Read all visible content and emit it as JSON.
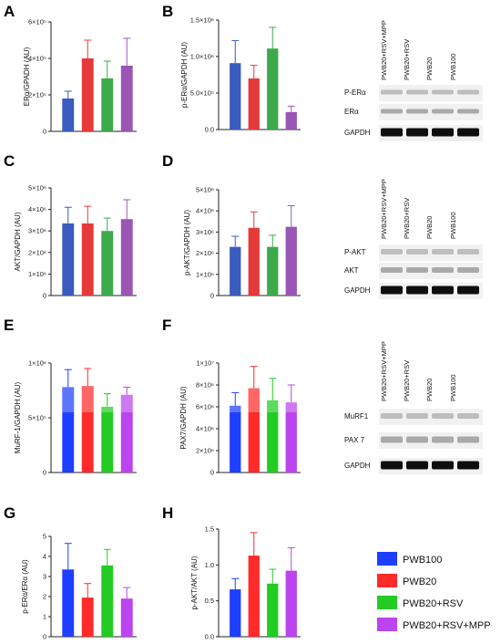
{
  "colors": {
    "pwb100": "#1f3fff",
    "pwb20": "#ff2a2a",
    "pwb20_rsv": "#22cc22",
    "pwb20_rsv_mpp": "#bb44ee",
    "pwb100_dim": "#3a5bbf",
    "pwb20_dim": "#e63a3a",
    "pwb20_rsv_dim": "#3caa4a",
    "pwb20_rsv_mpp_dim": "#9a55b5",
    "error_bar": "#888888",
    "axis": "#222222"
  },
  "legend": {
    "items": [
      "PWB100",
      "PWB20",
      "PWB20+RSV",
      "PWB20+RSV+MPP"
    ]
  },
  "blots": [
    {
      "lanes": [
        "PWB20+RSV+MPP",
        "PWB20+RSV",
        "PWB20",
        "PWB100"
      ],
      "rows": [
        "P-ERα",
        "ERα",
        "GAPDH"
      ]
    },
    {
      "lanes": [
        "PWB20+RSV+MPP",
        "PWB20+RSV",
        "PWB20",
        "PWB100"
      ],
      "rows": [
        "P-AKT",
        "AKT",
        "GAPDH"
      ]
    },
    {
      "lanes": [
        "PWB20+RSV+MPP",
        "PWB20+RSV",
        "PWB20",
        "PWB100"
      ],
      "rows": [
        "MuRF1",
        "PAX 7",
        "GAPDH"
      ]
    }
  ],
  "chart_data": [
    {
      "panel": "A",
      "type": "bar",
      "ylabel": "ERα/GPADH (AU)",
      "ylim": [
        0,
        600000
      ],
      "yticks": [
        0,
        200000,
        400000,
        600000
      ],
      "yticklabels": [
        "0",
        "2×10⁵",
        "4×10⁵",
        "6×10⁵"
      ],
      "series": [
        {
          "values": [
            180000,
            400000,
            290000,
            360000
          ],
          "errors": [
            40000,
            100000,
            95000,
            150000
          ]
        }
      ]
    },
    {
      "panel": "B",
      "type": "bar",
      "ylabel": "p-ERα/GAPDH (AU)",
      "ylim": [
        0,
        1500000
      ],
      "yticks": [
        0,
        500000,
        1000000,
        1500000
      ],
      "yticklabels": [
        "0.0",
        "5.0×10⁵",
        "1.0×10⁶",
        "1.5×10⁶"
      ],
      "series": [
        {
          "values": [
            910000,
            700000,
            1110000,
            240000
          ],
          "errors": [
            310000,
            180000,
            290000,
            80000
          ]
        }
      ]
    },
    {
      "panel": "C",
      "type": "bar",
      "ylabel": "AKT/GAPDH (AU)",
      "ylim": [
        0,
        5000000
      ],
      "yticks": [
        0,
        1000000,
        2000000,
        3000000,
        4000000,
        5000000
      ],
      "yticklabels": [
        "0",
        "1×10⁶",
        "2×10⁶",
        "3×10⁶",
        "4×10⁶",
        "5×10⁶"
      ],
      "series": [
        {
          "values": [
            3350000,
            3350000,
            3000000,
            3550000
          ],
          "errors": [
            750000,
            800000,
            600000,
            900000
          ]
        }
      ]
    },
    {
      "panel": "D",
      "type": "bar",
      "ylabel": "p-AKT/GAPDH (AU)",
      "ylim": [
        0,
        5000000
      ],
      "yticks": [
        0,
        1000000,
        2000000,
        3000000,
        4000000,
        5000000
      ],
      "yticklabels": [
        "0",
        "1×10⁶",
        "2×10⁶",
        "3×10⁶",
        "4×10⁶",
        "5×10⁶"
      ],
      "series": [
        {
          "values": [
            2300000,
            3200000,
            2300000,
            3250000
          ],
          "errors": [
            500000,
            750000,
            550000,
            1000000
          ]
        }
      ]
    },
    {
      "panel": "E",
      "type": "bar",
      "ylabel": "MuRF-1/GAPDH (AU)",
      "ylim": [
        0,
        1000000
      ],
      "yticks": [
        0,
        500000,
        1000000
      ],
      "yticklabels": [
        "0",
        "5×10⁵",
        "1×10⁶"
      ],
      "series": [
        {
          "values": [
            780000,
            790000,
            600000,
            710000
          ],
          "errors": [
            160000,
            160000,
            120000,
            70000
          ]
        }
      ]
    },
    {
      "panel": "F",
      "type": "bar",
      "ylabel": "PAX7/GAPDH (AU)",
      "ylim": [
        0,
        10000000
      ],
      "yticks": [
        0,
        2000000,
        4000000,
        6000000,
        8000000,
        10000000
      ],
      "yticklabels": [
        "0",
        "2×10⁶",
        "4×10⁶",
        "6×10⁶",
        "8×10⁶",
        "1×10⁷"
      ],
      "series": [
        {
          "values": [
            6100000,
            7700000,
            6600000,
            6400000
          ],
          "errors": [
            1200000,
            2000000,
            2000000,
            1600000
          ]
        }
      ]
    },
    {
      "panel": "G",
      "type": "bar",
      "ylabel": "p-ERα/ERα (AU)",
      "ylim": [
        0,
        5
      ],
      "yticks": [
        0,
        1,
        2,
        3,
        4,
        5
      ],
      "yticklabels": [
        "0",
        "1",
        "2",
        "3",
        "4",
        "5"
      ],
      "series": [
        {
          "values": [
            3.35,
            1.95,
            3.55,
            1.9
          ],
          "errors": [
            1.3,
            0.7,
            0.8,
            0.55
          ]
        }
      ]
    },
    {
      "panel": "H",
      "type": "bar",
      "ylabel": "p-AKT/AKT (AU)",
      "ylim": [
        0,
        1.5
      ],
      "yticks": [
        0,
        0.5,
        1.0,
        1.5
      ],
      "yticklabels": [
        "0.0",
        "0.5",
        "1.0",
        "1.5"
      ],
      "series": [
        {
          "values": [
            0.66,
            1.13,
            0.74,
            0.92
          ],
          "errors": [
            0.15,
            0.32,
            0.2,
            0.32
          ]
        }
      ]
    }
  ]
}
